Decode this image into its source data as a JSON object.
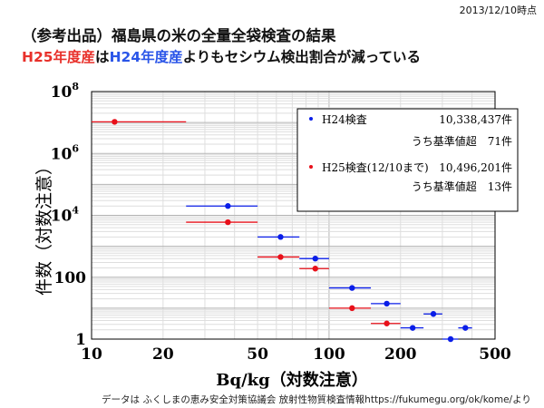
{
  "header": {
    "date": "2013/12/10時点",
    "title": "（参考出品）福島県の米の全量全袋検査の結果",
    "subtitle_part1": "H25年度産",
    "subtitle_part2": "は",
    "subtitle_part3": "H24年度産",
    "subtitle_part4": "よりもセシウム検出割合が減っている"
  },
  "footer": "データは ふくしまの恵み安全対策協議会 放射性物質検査情報https://fukumegu.org/ok/kome/より",
  "colors": {
    "h24": "#0a1ee8",
    "h25": "#e8101a",
    "subtitle_red": "#e8302a",
    "subtitle_blue": "#2a55e8"
  },
  "legend": {
    "h24_name": "H24検査",
    "h24_total": "10,338,437件",
    "h24_sub": "うち基準値超　71件",
    "h25_name": "H25検査(12/10まで)",
    "h25_total": "10,496,201件",
    "h25_sub": "うち基準値超　13件"
  },
  "chart_data": {
    "type": "scatter",
    "xlabel": "Bq/kg（対数注意）",
    "ylabel": "件数（対数注意）",
    "xscale": "log",
    "yscale": "log",
    "xlim": [
      10,
      500
    ],
    "ylim": [
      1,
      100000000
    ],
    "x_ticks": [
      "10",
      "20",
      "50",
      "100",
      "200",
      "500"
    ],
    "y_ticks": [
      "1",
      "100",
      "10^4",
      "10^6",
      "10^8"
    ],
    "grid": true,
    "legend_position": "top-right",
    "series": [
      {
        "name": "H24検査",
        "points": [
          {
            "x": 37.5,
            "y": 20000,
            "xerr": [
              25,
              50
            ]
          },
          {
            "x": 62.5,
            "y": 2000,
            "xerr": [
              50,
              75
            ]
          },
          {
            "x": 87.5,
            "y": 400,
            "xerr": [
              75,
              100
            ]
          },
          {
            "x": 125,
            "y": 45,
            "xerr": [
              100,
              150
            ]
          },
          {
            "x": 175,
            "y": 14,
            "xerr": [
              150,
              200
            ]
          },
          {
            "x": 225,
            "y": 2.3,
            "xerr": [
              200,
              250
            ]
          },
          {
            "x": 275,
            "y": 6.5,
            "xerr": [
              250,
              300
            ]
          },
          {
            "x": 325,
            "y": 1.0,
            "xerr": [
              300,
              350
            ]
          },
          {
            "x": 375,
            "y": 2.3,
            "xerr": [
              350,
              400
            ]
          }
        ]
      },
      {
        "name": "H25検査(12/10まで)",
        "points": [
          {
            "x": 12.5,
            "y": 10500000,
            "xerr": [
              10,
              25
            ]
          },
          {
            "x": 37.5,
            "y": 6000,
            "xerr": [
              25,
              50
            ]
          },
          {
            "x": 62.5,
            "y": 450,
            "xerr": [
              50,
              75
            ]
          },
          {
            "x": 87.5,
            "y": 190,
            "xerr": [
              75,
              100
            ]
          },
          {
            "x": 125,
            "y": 10,
            "xerr": [
              100,
              150
            ]
          },
          {
            "x": 175,
            "y": 3.2,
            "xerr": [
              150,
              200
            ]
          }
        ]
      }
    ]
  }
}
